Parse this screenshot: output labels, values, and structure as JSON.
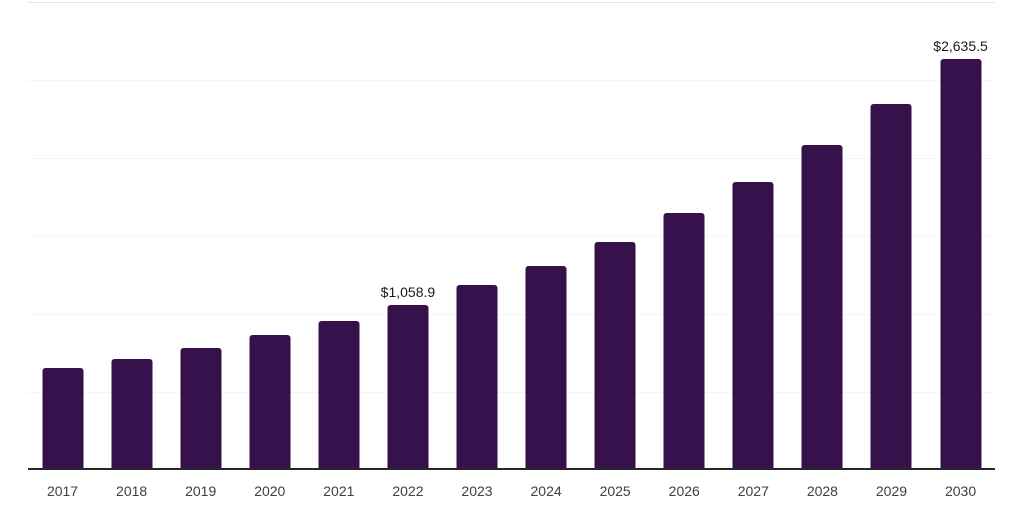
{
  "chart_data": {
    "type": "bar",
    "title": "",
    "categories": [
      "2017",
      "2018",
      "2019",
      "2020",
      "2021",
      "2022",
      "2023",
      "2024",
      "2025",
      "2026",
      "2027",
      "2028",
      "2029",
      "2030"
    ],
    "values": [
      652,
      710,
      780,
      865,
      953,
      1058.9,
      1184,
      1308,
      1464,
      1645,
      1848,
      2083,
      2346,
      2635.5
    ],
    "point_labels": {
      "2022": "$1,058.9",
      "2030": "$2,635.5"
    },
    "xlabel": "",
    "ylabel": "",
    "ylim": [
      0,
      3000
    ],
    "gridline_step": 500,
    "grid": "horizontal",
    "legend_position": "none",
    "colors": {
      "bar_fill": "#36114B",
      "axis_line": "#262626",
      "gridline": "#f4f4f4",
      "gridline_top": "#e7e7e7",
      "tick_label": "#404040",
      "data_label": "#1a1a1a",
      "background": "#ffffff"
    }
  }
}
